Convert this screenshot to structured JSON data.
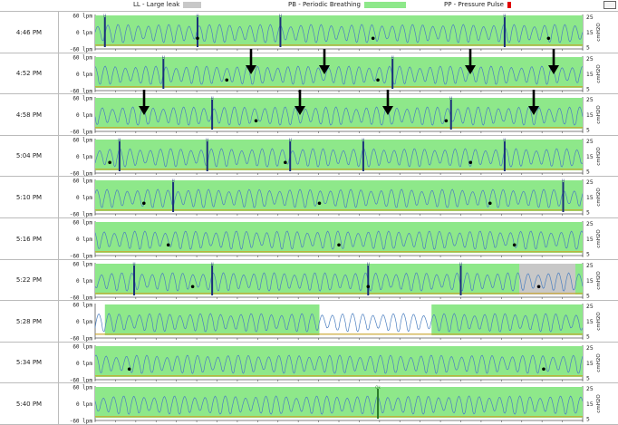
{
  "legend": {
    "large_leak": {
      "label": "LL - Large leak",
      "color": "#c8c8c8"
    },
    "periodic_breathing": {
      "label": "PB - Periodic Breathing",
      "color": "#8ee88a"
    },
    "pressure_pulse": {
      "label": "PP - Pressure Pulse",
      "color": "#e00000"
    }
  },
  "colors": {
    "flow_line": "#4b7fc0",
    "event_marker": "#1a2f7a",
    "pressure_line": "#c9a227",
    "arrow": "#000000",
    "ok_marker": "#2a7a2a"
  },
  "chart_data": {
    "type": "line",
    "title": "",
    "left_axis": {
      "ticks": [
        "60 lpm",
        "0 lpm",
        "-60 lpm"
      ],
      "range": [
        -60,
        60
      ],
      "unit": "lpm"
    },
    "right_axis": {
      "ticks": [
        "25",
        "15",
        "5"
      ],
      "range": [
        4,
        26
      ],
      "label": "cmH2O"
    },
    "time_window_minutes": 6,
    "rows": [
      {
        "time": "4:46 PM",
        "pb": [
          [
            0.0,
            1.0
          ]
        ],
        "ll": [],
        "h_markers": [
          0.02,
          0.21,
          0.38,
          0.84
        ],
        "ok_markers": [],
        "dots": [
          0.21,
          0.57,
          0.93
        ],
        "arrows": []
      },
      {
        "time": "4:52 PM",
        "pb": [
          [
            0.0,
            1.0
          ]
        ],
        "ll": [],
        "h_markers": [
          0.14,
          0.61
        ],
        "ok_markers": [],
        "dots": [
          0.27,
          0.58
        ],
        "arrows": [
          0.32,
          0.47,
          0.77,
          0.94
        ]
      },
      {
        "time": "4:58 PM",
        "pb": [
          [
            0.0,
            1.0
          ]
        ],
        "ll": [],
        "h_markers": [
          0.24,
          0.73
        ],
        "ok_markers": [],
        "dots": [
          0.33,
          0.72
        ],
        "arrows": [
          0.1,
          0.42,
          0.6,
          0.9
        ]
      },
      {
        "time": "5:04 PM",
        "pb": [
          [
            0.0,
            1.0
          ]
        ],
        "ll": [],
        "h_markers": [
          0.05,
          0.23,
          0.4,
          0.55,
          0.84
        ],
        "ok_markers": [],
        "dots": [
          0.03,
          0.39,
          0.77
        ],
        "arrows": []
      },
      {
        "time": "5:10 PM",
        "pb": [
          [
            0.0,
            1.0
          ]
        ],
        "ll": [],
        "h_markers": [
          0.16,
          0.96
        ],
        "ok_markers": [],
        "dots": [
          0.1,
          0.46,
          0.81
        ],
        "arrows": []
      },
      {
        "time": "5:16 PM",
        "pb": [
          [
            0.0,
            1.0
          ]
        ],
        "ll": [],
        "h_markers": [],
        "ok_markers": [],
        "dots": [
          0.15,
          0.5,
          0.86
        ],
        "arrows": []
      },
      {
        "time": "5:22 PM",
        "pb": [
          [
            0.0,
            1.0
          ]
        ],
        "ll": [
          [
            0.87,
            0.985
          ]
        ],
        "h_markers": [
          0.08,
          0.24,
          0.56,
          0.75
        ],
        "ok_markers": [],
        "dots": [
          0.2,
          0.56,
          0.91
        ],
        "arrows": []
      },
      {
        "time": "5:28 PM",
        "pb": [
          [
            0.02,
            0.46
          ],
          [
            0.69,
            1.0
          ]
        ],
        "ll": [],
        "h_markers": [],
        "ok_markers": [],
        "dots": [],
        "arrows": []
      },
      {
        "time": "5:34 PM",
        "pb": [
          [
            0.0,
            1.0
          ]
        ],
        "ll": [],
        "h_markers": [],
        "ok_markers": [],
        "dots": [
          0.07,
          0.92
        ],
        "arrows": []
      },
      {
        "time": "5:40 PM",
        "pb": [
          [
            0.0,
            1.0
          ]
        ],
        "ll": [],
        "h_markers": [],
        "ok_markers": [
          0.58
        ],
        "dots": [],
        "arrows": []
      }
    ]
  }
}
